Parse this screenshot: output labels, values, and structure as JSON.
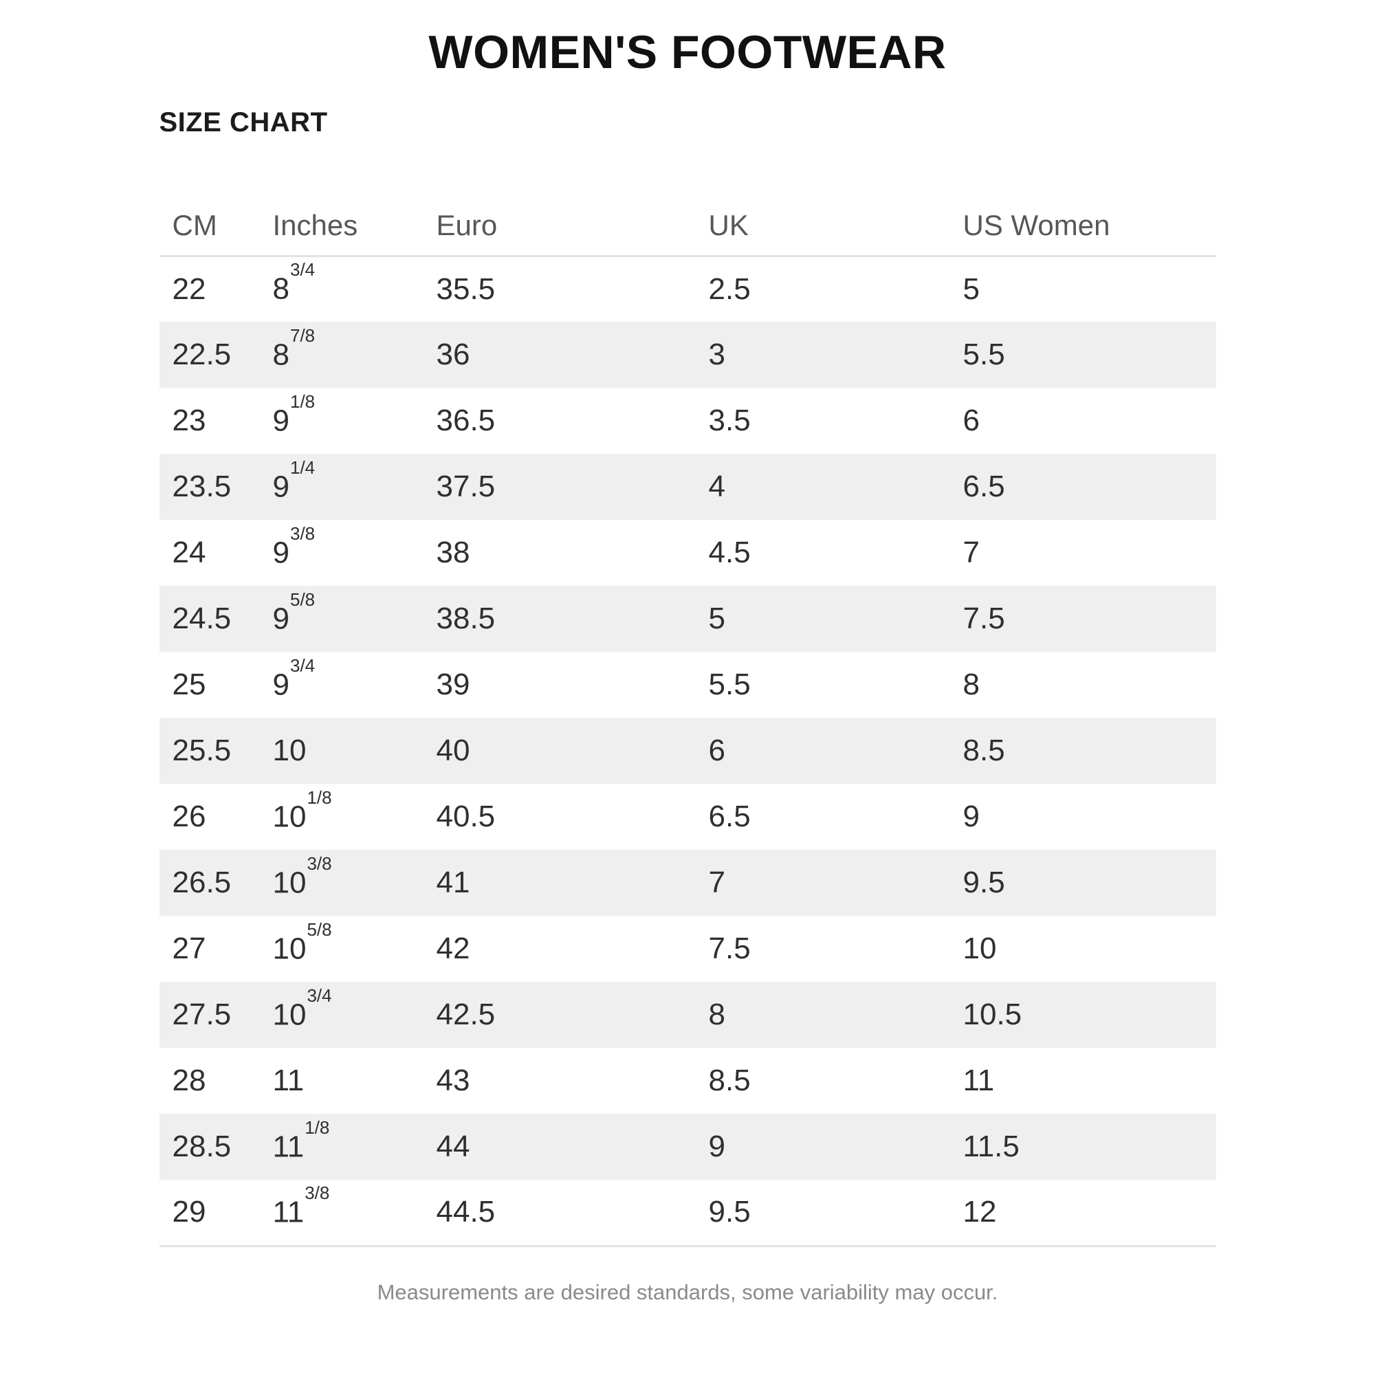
{
  "page": {
    "title": "WOMEN'S FOOTWEAR",
    "section_title": "SIZE CHART",
    "footnote": "Measurements are desired standards, some variability may occur."
  },
  "size_chart": {
    "columns": [
      "CM",
      "Inches",
      "Euro",
      "UK",
      "US Women"
    ],
    "rows": [
      {
        "cm": "22",
        "inches_whole": "8",
        "inches_frac": "3/4",
        "euro": "35.5",
        "uk": "2.5",
        "us_women": "5"
      },
      {
        "cm": "22.5",
        "inches_whole": "8",
        "inches_frac": "7/8",
        "euro": "36",
        "uk": "3",
        "us_women": "5.5"
      },
      {
        "cm": "23",
        "inches_whole": "9",
        "inches_frac": "1/8",
        "euro": "36.5",
        "uk": "3.5",
        "us_women": "6"
      },
      {
        "cm": "23.5",
        "inches_whole": "9",
        "inches_frac": "1/4",
        "euro": "37.5",
        "uk": "4",
        "us_women": "6.5"
      },
      {
        "cm": "24",
        "inches_whole": "9",
        "inches_frac": "3/8",
        "euro": "38",
        "uk": "4.5",
        "us_women": "7"
      },
      {
        "cm": "24.5",
        "inches_whole": "9",
        "inches_frac": "5/8",
        "euro": "38.5",
        "uk": "5",
        "us_women": "7.5"
      },
      {
        "cm": "25",
        "inches_whole": "9",
        "inches_frac": "3/4",
        "euro": "39",
        "uk": "5.5",
        "us_women": "8"
      },
      {
        "cm": "25.5",
        "inches_whole": "10",
        "inches_frac": "",
        "euro": "40",
        "uk": "6",
        "us_women": "8.5"
      },
      {
        "cm": "26",
        "inches_whole": "10",
        "inches_frac": "1/8",
        "euro": "40.5",
        "uk": "6.5",
        "us_women": "9"
      },
      {
        "cm": "26.5",
        "inches_whole": "10",
        "inches_frac": "3/8",
        "euro": "41",
        "uk": "7",
        "us_women": "9.5"
      },
      {
        "cm": "27",
        "inches_whole": "10",
        "inches_frac": "5/8",
        "euro": "42",
        "uk": "7.5",
        "us_women": "10"
      },
      {
        "cm": "27.5",
        "inches_whole": "10",
        "inches_frac": "3/4",
        "euro": "42.5",
        "uk": "8",
        "us_women": "10.5"
      },
      {
        "cm": "28",
        "inches_whole": "11",
        "inches_frac": "",
        "euro": "43",
        "uk": "8.5",
        "us_women": "11"
      },
      {
        "cm": "28.5",
        "inches_whole": "11",
        "inches_frac": "1/8",
        "euro": "44",
        "uk": "9",
        "us_women": "11.5"
      },
      {
        "cm": "29",
        "inches_whole": "11",
        "inches_frac": "3/8",
        "euro": "44.5",
        "uk": "9.5",
        "us_women": "12"
      }
    ]
  },
  "colors": {
    "alt_row_bg": "#efefef",
    "border": "#e3e3e3",
    "header_text": "#56575b",
    "cell_text": "#2f2f2f",
    "title_text": "#111111",
    "footnote_text": "#8a8a8a"
  }
}
